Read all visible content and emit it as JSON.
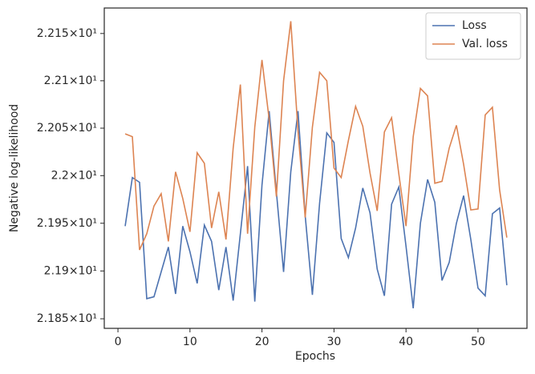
{
  "chart_data": {
    "type": "line",
    "x_label": "Epochs",
    "y_label": "Negative log-likelihood",
    "x": [
      1,
      2,
      3,
      4,
      5,
      6,
      7,
      8,
      9,
      10,
      11,
      12,
      13,
      14,
      15,
      16,
      17,
      18,
      19,
      20,
      21,
      22,
      23,
      24,
      25,
      26,
      27,
      28,
      29,
      30,
      31,
      32,
      33,
      34,
      35,
      36,
      37,
      38,
      39,
      40,
      41,
      42,
      43,
      44,
      45,
      46,
      47,
      48,
      49,
      50,
      51,
      52,
      53,
      54
    ],
    "series": [
      {
        "name": "Loss",
        "color": "#4c72b0",
        "values": [
          21.947,
          21.998,
          21.993,
          21.871,
          21.873,
          21.899,
          21.925,
          21.876,
          21.947,
          21.92,
          21.887,
          21.948,
          21.931,
          21.88,
          21.925,
          21.869,
          21.939,
          22.01,
          21.868,
          21.99,
          22.068,
          21.983,
          21.899,
          22.004,
          22.068,
          21.958,
          21.875,
          21.971,
          22.045,
          22.035,
          21.934,
          21.914,
          21.945,
          21.987,
          21.961,
          21.902,
          21.874,
          21.97,
          21.988,
          21.926,
          21.861,
          21.95,
          21.996,
          21.972,
          21.89,
          21.909,
          21.95,
          21.979,
          21.933,
          21.882,
          21.874,
          21.96,
          21.966,
          21.885
        ]
      },
      {
        "name": "Val. loss",
        "color": "#dd8452",
        "values": [
          22.044,
          22.041,
          21.922,
          21.939,
          21.968,
          21.981,
          21.931,
          22.004,
          21.976,
          21.941,
          22.024,
          22.013,
          21.945,
          21.983,
          21.933,
          22.029,
          22.096,
          21.939,
          22.051,
          22.122,
          22.059,
          21.978,
          22.1,
          22.163,
          22.047,
          21.956,
          22.051,
          22.109,
          22.1,
          22.008,
          21.998,
          22.037,
          22.073,
          22.052,
          22.003,
          21.963,
          22.046,
          22.061,
          22.002,
          21.947,
          22.041,
          22.092,
          22.084,
          21.992,
          21.994,
          22.029,
          22.053,
          22.012,
          21.964,
          21.965,
          22.064,
          22.072,
          21.985,
          21.935
        ]
      }
    ],
    "xlim": [
      -1.9,
      56.8
    ],
    "xticks": [
      0,
      10,
      20,
      30,
      40,
      50
    ],
    "ylim": [
      21.84,
      22.177
    ],
    "log_scale": true,
    "yticks": [
      {
        "value": 21.85,
        "label": "2.185×10¹"
      },
      {
        "value": 21.9,
        "label": "2.19×10¹"
      },
      {
        "value": 21.95,
        "label": "2.195×10¹"
      },
      {
        "value": 22.0,
        "label": "2.2×10¹"
      },
      {
        "value": 22.05,
        "label": "2.205×10¹"
      },
      {
        "value": 22.1,
        "label": "2.21×10¹"
      },
      {
        "value": 22.15,
        "label": "2.215×10¹"
      }
    ],
    "grid": false,
    "legend": "upper right"
  }
}
